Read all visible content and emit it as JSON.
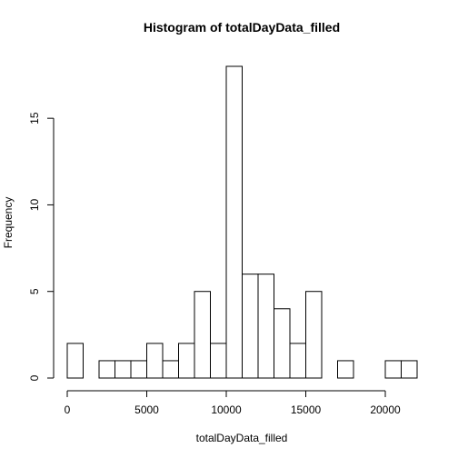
{
  "chart_data": {
    "type": "bar",
    "title": "Histogram of totalDayData_filled",
    "xlabel": "totalDayData_filled",
    "ylabel": "Frequency",
    "bin_width": 1000,
    "bin_starts": [
      0,
      1000,
      2000,
      3000,
      4000,
      5000,
      6000,
      7000,
      8000,
      9000,
      10000,
      11000,
      12000,
      13000,
      14000,
      15000,
      16000,
      17000,
      18000,
      19000,
      20000,
      21000
    ],
    "values": [
      2,
      0,
      1,
      1,
      1,
      2,
      1,
      2,
      5,
      2,
      18,
      6,
      6,
      4,
      2,
      5,
      0,
      1,
      0,
      0,
      1,
      1
    ],
    "xlim": [
      0,
      22000
    ],
    "ylim": [
      0,
      18
    ],
    "x_ticks": [
      0,
      5000,
      10000,
      15000,
      20000
    ],
    "x_tick_labels": [
      "0",
      "5000",
      "10000",
      "15000",
      "20000"
    ],
    "y_ticks": [
      0,
      5,
      10,
      15
    ],
    "y_tick_labels": [
      "0",
      "5",
      "10",
      "15"
    ],
    "grid": false,
    "bar_fill": "#ffffff",
    "bar_stroke": "#000000"
  }
}
